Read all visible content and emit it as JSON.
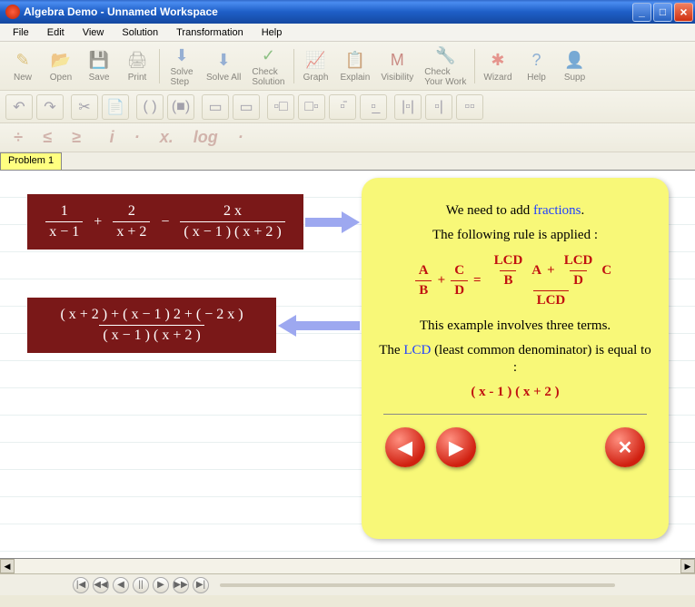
{
  "window": {
    "title": "Algebra Demo - Unnamed Workspace"
  },
  "menu": [
    "File",
    "Edit",
    "View",
    "Solution",
    "Transformation",
    "Help"
  ],
  "toolbar1": [
    {
      "label": "New",
      "icon": "✎",
      "color": "#d0a030"
    },
    {
      "label": "Open",
      "icon": "📂",
      "color": "#e0b040"
    },
    {
      "label": "Save",
      "icon": "💾",
      "color": "#5080d0"
    },
    {
      "label": "Print",
      "icon": "🖨",
      "color": "#888"
    },
    {
      "sep": true
    },
    {
      "label": "Solve\nStep",
      "icon": "⬇",
      "color": "#5080d0"
    },
    {
      "label": "Solve All",
      "icon": "⬇",
      "color": "#5080d0"
    },
    {
      "label": "Check\nSolution",
      "icon": "✓",
      "color": "#40a040"
    },
    {
      "sep": true
    },
    {
      "label": "Graph",
      "icon": "📈",
      "color": "#c06020"
    },
    {
      "label": "Explain",
      "icon": "📋",
      "color": "#c08040"
    },
    {
      "label": "Visibility",
      "icon": "M",
      "color": "#b04040"
    },
    {
      "label": "Check\nYour Work",
      "icon": "🔧",
      "color": "#888"
    },
    {
      "sep": true
    },
    {
      "label": "Wizard",
      "icon": "✱",
      "color": "#e05050"
    },
    {
      "label": "Help",
      "icon": "?",
      "color": "#4080d0"
    },
    {
      "label": "Supp",
      "icon": "👤",
      "color": "#888"
    }
  ],
  "toolbar2": [
    "↶",
    "↷",
    "",
    "✂",
    "📄",
    "",
    "( )",
    "(■)",
    "",
    "▭",
    "▭",
    "",
    "▫□",
    "□▫",
    "▫̄",
    "▫̲",
    "",
    "|▫|",
    "▫|",
    "▫▫"
  ],
  "toolbar3": [
    "÷",
    "≤",
    "≥",
    "",
    "i",
    "·",
    "x.",
    "log",
    "·"
  ],
  "tab": "Problem 1",
  "eq1": {
    "t1n": "1",
    "t1d": "x − 1",
    "t2n": "2",
    "t2d": "x + 2",
    "t3n": "2 x",
    "t3d": "( x − 1 ) ( x + 2 )"
  },
  "eq2": {
    "num": "( x + 2 ) + ( x − 1 ) 2 + ( − 2 x )",
    "den": "( x − 1 ) ( x + 2 )"
  },
  "panel": {
    "l1a": "We need to add ",
    "l1b": "fractions",
    "l1c": ".",
    "l2": "The following rule is applied :",
    "rule": {
      "A": "A",
      "B": "B",
      "C": "C",
      "D": "D",
      "LCD": "LCD"
    },
    "l3": "This example involves three terms.",
    "l4a": "The ",
    "l4b": "LCD",
    "l4c": " (least common denominator) is equal to :",
    "lcd": "( x - 1 ) ( x + 2 )"
  },
  "ctrl": {
    "prev": "◀",
    "next": "▶",
    "close": "✕"
  }
}
